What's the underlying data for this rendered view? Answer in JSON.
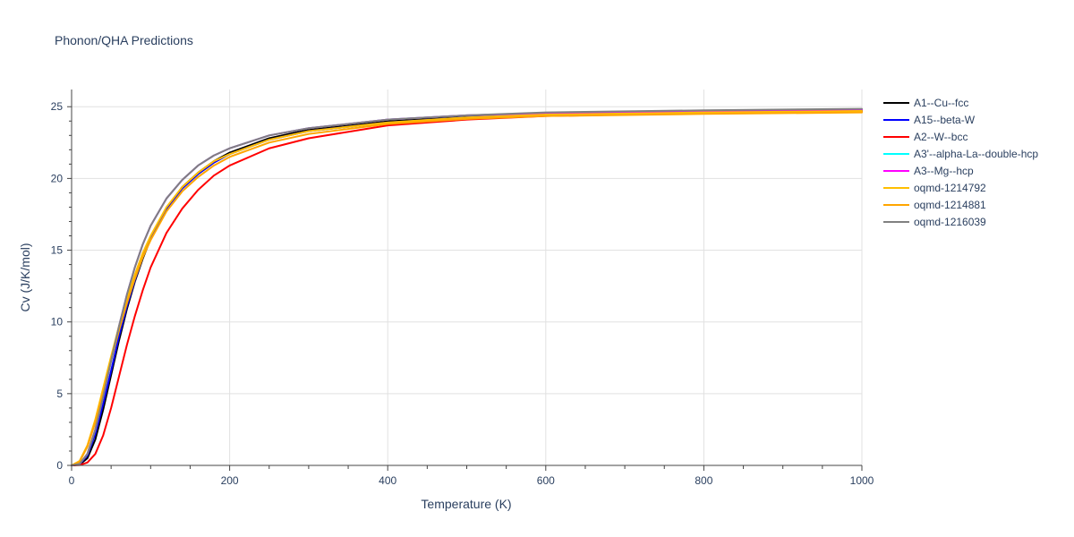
{
  "chart_data": {
    "type": "line",
    "title": "Phonon/QHA Predictions",
    "xlabel": "Temperature (K)",
    "ylabel": "Cv (J/K/mol)",
    "xlim": [
      0,
      1000
    ],
    "ylim": [
      0,
      26.2
    ],
    "xticks": [
      0,
      200,
      400,
      600,
      800,
      1000
    ],
    "yticks": [
      0,
      5,
      10,
      15,
      20,
      25
    ],
    "grid": true,
    "legend_position": "right",
    "series": [
      {
        "name": "A1--Cu--fcc",
        "color": "#000000",
        "x": [
          0,
          10,
          20,
          30,
          40,
          50,
          60,
          70,
          80,
          90,
          100,
          120,
          140,
          160,
          180,
          200,
          250,
          300,
          400,
          500,
          600,
          800,
          1000
        ],
        "y": [
          0,
          0.05,
          0.5,
          1.8,
          3.9,
          6.3,
          8.7,
          10.9,
          12.8,
          14.4,
          15.8,
          17.9,
          19.4,
          20.4,
          21.2,
          21.8,
          22.8,
          23.4,
          24.0,
          24.3,
          24.5,
          24.65,
          24.75
        ]
      },
      {
        "name": "A15--beta-W",
        "color": "#0000ff",
        "x": [
          0,
          10,
          20,
          30,
          40,
          50,
          60,
          70,
          80,
          90,
          100,
          120,
          140,
          160,
          180,
          200,
          250,
          300,
          400,
          500,
          600,
          800,
          1000
        ],
        "y": [
          0,
          0.08,
          0.7,
          2.2,
          4.3,
          6.6,
          9.0,
          11.1,
          12.9,
          14.5,
          15.9,
          17.9,
          19.3,
          20.3,
          21.1,
          21.7,
          22.7,
          23.3,
          23.9,
          24.25,
          24.45,
          24.6,
          24.7
        ]
      },
      {
        "name": "A2--W--bcc",
        "color": "#ff0000",
        "x": [
          0,
          10,
          20,
          30,
          40,
          50,
          60,
          70,
          80,
          90,
          100,
          120,
          140,
          160,
          180,
          200,
          250,
          300,
          400,
          500,
          600,
          800,
          1000
        ],
        "y": [
          0,
          0.02,
          0.2,
          0.8,
          2.1,
          4.0,
          6.2,
          8.4,
          10.4,
          12.2,
          13.8,
          16.2,
          17.9,
          19.2,
          20.2,
          20.9,
          22.1,
          22.8,
          23.7,
          24.1,
          24.35,
          24.55,
          24.65
        ]
      },
      {
        "name": "A3'--alpha-La--double-hcp",
        "color": "#00ffff",
        "x": [
          0,
          10,
          20,
          30,
          40,
          50,
          60,
          70,
          80,
          90,
          100,
          120,
          140,
          160,
          180,
          200,
          250,
          300,
          400,
          500,
          600,
          800,
          1000
        ],
        "y": [
          0,
          0.1,
          0.8,
          2.5,
          4.8,
          7.3,
          9.7,
          11.9,
          13.8,
          15.4,
          16.7,
          18.6,
          19.9,
          20.9,
          21.6,
          22.1,
          23.0,
          23.5,
          24.1,
          24.4,
          24.55,
          24.7,
          24.8
        ]
      },
      {
        "name": "A3--Mg--hcp",
        "color": "#ff00ff",
        "x": [
          0,
          10,
          20,
          30,
          40,
          50,
          60,
          70,
          80,
          90,
          100,
          120,
          140,
          160,
          180,
          200,
          250,
          300,
          400,
          500,
          600,
          800,
          1000
        ],
        "y": [
          0,
          0.1,
          0.8,
          2.5,
          4.8,
          7.3,
          9.7,
          11.9,
          13.8,
          15.4,
          16.7,
          18.6,
          19.9,
          20.9,
          21.6,
          22.1,
          23.0,
          23.5,
          24.1,
          24.4,
          24.55,
          24.7,
          24.8
        ]
      },
      {
        "name": "oqmd-1214792",
        "color": "#ffbf00",
        "x": [
          0,
          10,
          20,
          30,
          40,
          50,
          60,
          70,
          80,
          90,
          100,
          120,
          140,
          160,
          180,
          200,
          250,
          300,
          400,
          500,
          600,
          800,
          1000
        ],
        "y": [
          0,
          0.3,
          1.4,
          3.2,
          5.4,
          7.6,
          9.7,
          11.6,
          13.3,
          14.8,
          16.0,
          18.0,
          19.4,
          20.4,
          21.2,
          21.7,
          22.7,
          23.3,
          23.9,
          24.25,
          24.45,
          24.6,
          24.7
        ]
      },
      {
        "name": "oqmd-1214881",
        "color": "#ffa500",
        "x": [
          0,
          10,
          20,
          30,
          40,
          50,
          60,
          70,
          80,
          90,
          100,
          120,
          140,
          160,
          180,
          200,
          250,
          300,
          400,
          500,
          600,
          800,
          1000
        ],
        "y": [
          0,
          0.25,
          1.3,
          3.0,
          5.1,
          7.3,
          9.4,
          11.3,
          13.0,
          14.5,
          15.7,
          17.7,
          19.1,
          20.1,
          20.9,
          21.5,
          22.5,
          23.1,
          23.8,
          24.15,
          24.35,
          24.5,
          24.6
        ]
      },
      {
        "name": "oqmd-1216039",
        "color": "#808080",
        "x": [
          0,
          10,
          20,
          30,
          40,
          50,
          60,
          70,
          80,
          90,
          100,
          120,
          140,
          160,
          180,
          200,
          250,
          300,
          400,
          500,
          600,
          800,
          1000
        ],
        "y": [
          0,
          0.1,
          0.8,
          2.5,
          4.8,
          7.3,
          9.7,
          11.9,
          13.8,
          15.4,
          16.7,
          18.6,
          19.9,
          20.9,
          21.6,
          22.1,
          23.0,
          23.5,
          24.1,
          24.4,
          24.6,
          24.75,
          24.85
        ]
      }
    ]
  }
}
